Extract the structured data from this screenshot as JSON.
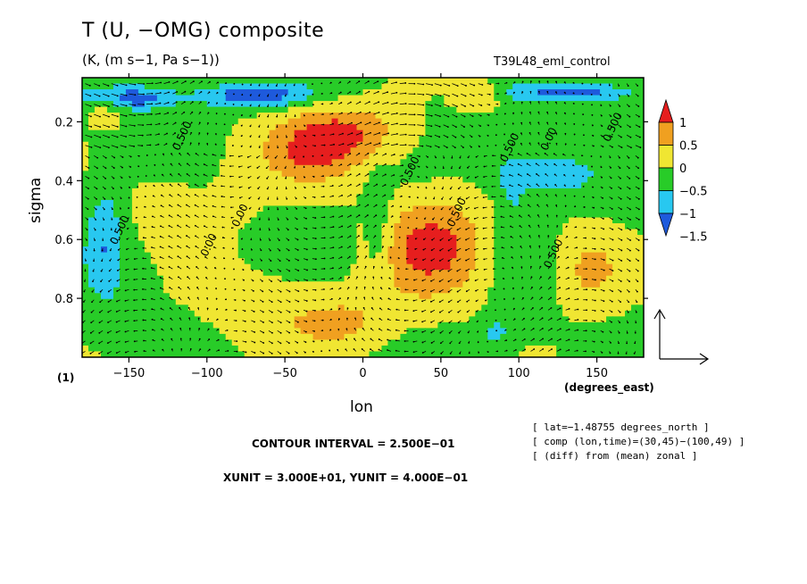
{
  "header": {
    "title": "T (U, −OMG) composite",
    "subtitle": "(K, (m s−1, Pa s−1))",
    "run_label": "T39L48_eml_control"
  },
  "chart_data": {
    "type": "heatmap",
    "title": "T (U, −OMG) composite",
    "subtitle": "(K, (m s−1, Pa s−1))",
    "xlabel": "lon",
    "ylabel": "sigma",
    "x_unit_label": "(degrees_east)",
    "y_unit_label": "(1)",
    "xlim": [
      -180,
      180
    ],
    "ylim": [
      1.0,
      0.05
    ],
    "x_ticks": [
      -150,
      -100,
      -50,
      0,
      50,
      100,
      150
    ],
    "y_ticks": [
      0.2,
      0.4,
      0.6,
      0.8
    ],
    "x_tick_labels": [
      "−150",
      "−100",
      "−50",
      "0",
      "50",
      "100",
      "150"
    ],
    "y_tick_labels": [
      "0.2",
      "0.4",
      "0.6",
      "0.8"
    ],
    "colorbar": {
      "levels": [
        -1.5,
        -1,
        -0.5,
        0,
        0.5,
        1
      ],
      "labels": [
        "1",
        "0.5",
        "0",
        "−0.5",
        "−1",
        "−1.5"
      ],
      "colors": [
        "#1e5adc",
        "#28c8f0",
        "#28cc28",
        "#f0e632",
        "#f0a020",
        "#e61e1e"
      ]
    },
    "contour_labels": [
      "0.500",
      "0.500",
      "0.00",
      "0.00",
      "0.500",
      "0.500",
      "0.500",
      "0.00",
      "0.500",
      "0.500"
    ],
    "contour_interval": 0.25,
    "anomalies": [
      {
        "lon": 45,
        "sigma": 0.62,
        "value": 1.25,
        "width": 35,
        "height": 0.18
      },
      {
        "lon": -15,
        "sigma": 0.24,
        "value": 1.2,
        "width": 40,
        "height": 0.1
      },
      {
        "lon": -35,
        "sigma": 0.33,
        "value": 0.7,
        "width": 30,
        "height": 0.1
      },
      {
        "lon": 145,
        "sigma": 0.7,
        "value": 0.75,
        "width": 22,
        "height": 0.14
      },
      {
        "lon": -10,
        "sigma": 0.88,
        "value": 0.6,
        "width": 30,
        "height": 0.1
      },
      {
        "lon": -120,
        "sigma": 0.5,
        "value": 0.45,
        "width": 30,
        "height": 0.12
      },
      {
        "lon": -165,
        "sigma": 0.15,
        "value": 0.55,
        "width": 12,
        "height": 0.06
      },
      {
        "lon": -80,
        "sigma": 0.38,
        "value": 0.3,
        "width": 18,
        "height": 0.14
      },
      {
        "lon": -55,
        "sigma": 0.85,
        "value": 0.5,
        "width": 40,
        "height": 0.14
      },
      {
        "lon": -165,
        "sigma": 0.6,
        "value": -0.8,
        "width": 12,
        "height": 0.2
      },
      {
        "lon": -150,
        "sigma": 0.12,
        "value": -1.2,
        "width": 30,
        "height": 0.04
      },
      {
        "lon": -70,
        "sigma": 0.11,
        "value": -1.3,
        "width": 35,
        "height": 0.04
      },
      {
        "lon": 120,
        "sigma": 0.38,
        "value": -0.8,
        "width": 30,
        "height": 0.08
      },
      {
        "lon": 135,
        "sigma": 0.1,
        "value": -1.1,
        "width": 40,
        "height": 0.03
      },
      {
        "lon": 85,
        "sigma": 0.92,
        "value": -0.6,
        "width": 8,
        "height": 0.05
      },
      {
        "lon": 75,
        "sigma": 0.11,
        "value": 0.6,
        "width": 15,
        "height": 0.05
      },
      {
        "lon": 10,
        "sigma": 0.55,
        "value": -0.5,
        "width": 8,
        "height": 0.2
      },
      {
        "lon": 95,
        "sigma": 0.5,
        "value": -0.45,
        "width": 10,
        "height": 0.3
      }
    ],
    "vector_reference": {
      "xunit": 30.0,
      "yunit": 0.4
    }
  },
  "footer": {
    "contour_interval_text": "CONTOUR INTERVAL = 2.500E−01",
    "unit_text": "XUNIT = 3.000E+01, YUNIT = 4.000E−01",
    "info_lines": [
      "[ lat=−1.48755 degrees_north ]",
      "[ comp (lon,time)=(30,45)−(100,49) ]",
      "[ (diff) from (mean) zonal ]"
    ]
  }
}
